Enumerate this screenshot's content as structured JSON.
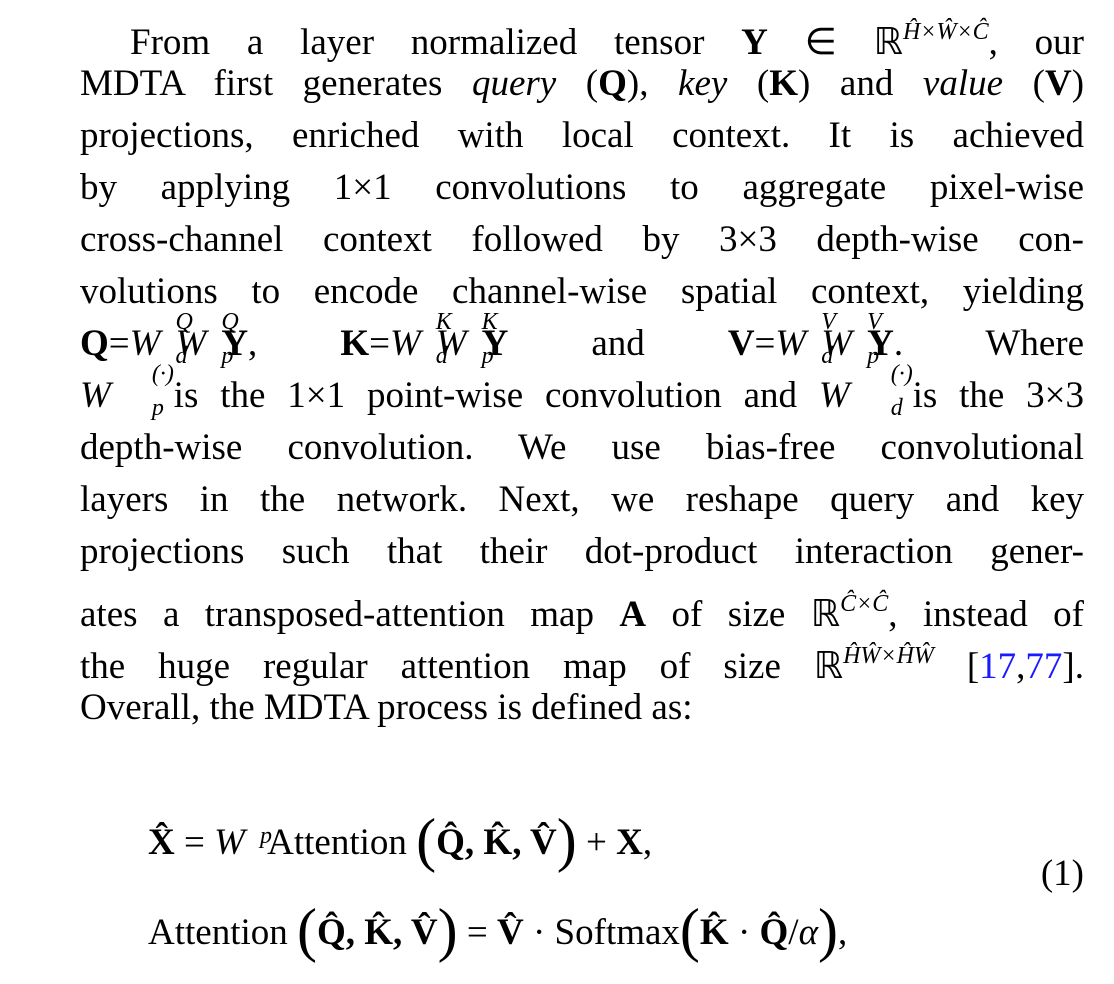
{
  "paragraph": {
    "lines": [
      [
        {
          "text": "From a layer normalized tensor "
        },
        {
          "text": "Y",
          "style": "b"
        },
        {
          "text": " ∈ ℝ"
        },
        {
          "text": "Ĥ×Ŵ×Ĉ",
          "style": "sup"
        },
        {
          "text": ", our"
        }
      ],
      [
        {
          "text": "MDTA first generates "
        },
        {
          "text": "query",
          "style": "i"
        },
        {
          "text": " ("
        },
        {
          "text": "Q",
          "style": "b"
        },
        {
          "text": "), "
        },
        {
          "text": "key",
          "style": "i"
        },
        {
          "text": " ("
        },
        {
          "text": "K",
          "style": "b"
        },
        {
          "text": ") and "
        },
        {
          "text": "value",
          "style": "i"
        },
        {
          "text": " ("
        },
        {
          "text": "V",
          "style": "b"
        },
        {
          "text": ")"
        }
      ],
      [
        {
          "text": "projections, enriched with local context. It is achieved"
        }
      ],
      [
        {
          "text": "by applying 1×1 convolutions to aggregate pixel-wise"
        }
      ],
      [
        {
          "text": "cross-channel context followed by 3×3 depth-wise con-"
        }
      ],
      [
        {
          "text": "volutions to encode channel-wise spatial context, yielding"
        }
      ],
      [
        {
          "text": "Q",
          "style": "b"
        },
        {
          "text": "="
        },
        {
          "base": "W",
          "sup": "Q",
          "sub": "d"
        },
        {
          "base": "W",
          "sup": "Q",
          "sub": "p"
        },
        {
          "text": "Y",
          "style": "b"
        },
        {
          "text": ", "
        },
        {
          "text": "K",
          "style": "b"
        },
        {
          "text": "="
        },
        {
          "base": "W",
          "sup": "K",
          "sub": "d"
        },
        {
          "base": "W",
          "sup": "K",
          "sub": "p"
        },
        {
          "text": "Y",
          "style": "b"
        },
        {
          "text": " and "
        },
        {
          "text": "V",
          "style": "b"
        },
        {
          "text": "="
        },
        {
          "base": "W",
          "sup": "V",
          "sub": "d"
        },
        {
          "base": "W",
          "sup": "V",
          "sub": "p"
        },
        {
          "text": "Y",
          "style": "b"
        },
        {
          "text": ". Where"
        }
      ],
      [
        {
          "base": "W",
          "sup": "(·)",
          "sub": "p"
        },
        {
          "text": " is the 1×1 point-wise convolution and "
        },
        {
          "base": "W",
          "sup": "(·)",
          "sub": "d"
        },
        {
          "text": " is the 3×3"
        }
      ],
      [
        {
          "text": "depth-wise convolution. We use bias-free convolutional"
        }
      ],
      [
        {
          "text": "layers in the network. Next, we reshape query and key"
        }
      ],
      [
        {
          "text": "projections such that their dot-product interaction gener-"
        }
      ],
      [
        {
          "text": "ates a transposed-attention map "
        },
        {
          "text": "A",
          "style": "b"
        },
        {
          "text": " of size ℝ"
        },
        {
          "text": "Ĉ×Ĉ",
          "style": "sup"
        },
        {
          "text": ", instead of"
        }
      ],
      [
        {
          "text": "the huge regular attention map of size ℝ"
        },
        {
          "text": "ĤŴ×ĤŴ",
          "style": "sup"
        },
        {
          "text": " ["
        },
        {
          "text": "17",
          "style": "link"
        },
        {
          "text": ","
        },
        {
          "text": "77",
          "style": "link"
        },
        {
          "text": "]."
        }
      ],
      [
        {
          "text": "Overall, the MDTA process is defined as:"
        }
      ]
    ]
  },
  "equation": {
    "lines": [
      [
        {
          "text": "X̂",
          "style": "b"
        },
        {
          "text": " = "
        },
        {
          "base": "W",
          "sub": "p"
        },
        {
          "text": " Attention "
        },
        {
          "text": "(",
          "style": "big"
        },
        {
          "text": "Q̂, K̂, V̂",
          "style": "b"
        },
        {
          "text": ")",
          "style": "big"
        },
        {
          "text": " + "
        },
        {
          "text": "X",
          "style": "b"
        },
        {
          "text": ","
        }
      ],
      [
        {
          "text": "Attention "
        },
        {
          "text": "(",
          "style": "big"
        },
        {
          "text": "Q̂, K̂, V̂",
          "style": "b"
        },
        {
          "text": ")",
          "style": "big"
        },
        {
          "text": " = "
        },
        {
          "text": "V̂",
          "style": "b"
        },
        {
          "text": " · Softmax"
        },
        {
          "text": "(",
          "style": "big"
        },
        {
          "text": "K̂",
          "style": "b"
        },
        {
          "text": " · "
        },
        {
          "text": "Q̂",
          "style": "b"
        },
        {
          "text": "/"
        },
        {
          "text": "α",
          "style": "i"
        },
        {
          "text": ")",
          "style": "big"
        },
        {
          "text": ","
        }
      ]
    ],
    "number": "(1)"
  }
}
